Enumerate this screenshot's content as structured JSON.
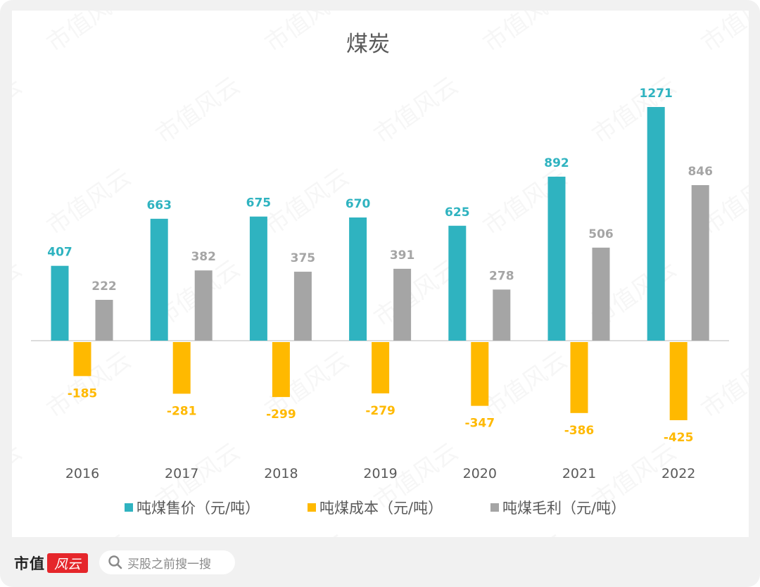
{
  "chart_data": {
    "type": "bar",
    "title": "煤炭",
    "xlabel": "",
    "ylabel": "",
    "ylim": [
      -500,
      1300
    ],
    "grid": false,
    "legend_position": "bottom",
    "categories": [
      "2016",
      "2017",
      "2018",
      "2019",
      "2020",
      "2021",
      "2022"
    ],
    "series": [
      {
        "name": "吨煤售价（元/吨）",
        "color": "#2fb3c0",
        "label_color": "#2fb3c0",
        "values": [
          407,
          663,
          675,
          670,
          625,
          892,
          1271
        ]
      },
      {
        "name": "吨煤成本（元/吨）",
        "color": "#ffb900",
        "label_color": "#ffb900",
        "values": [
          -185,
          -281,
          -299,
          -279,
          -347,
          -386,
          -425
        ]
      },
      {
        "name": "吨煤毛利（元/吨）",
        "color": "#a5a5a5",
        "label_color": "#a5a5a5",
        "values": [
          222,
          382,
          375,
          391,
          278,
          506,
          846
        ]
      }
    ]
  },
  "watermark": "市值风云",
  "footer": {
    "brand_text": "市值",
    "brand_badge": "风云",
    "search_placeholder": "买股之前搜一搜",
    "search_icon": "search-icon"
  }
}
